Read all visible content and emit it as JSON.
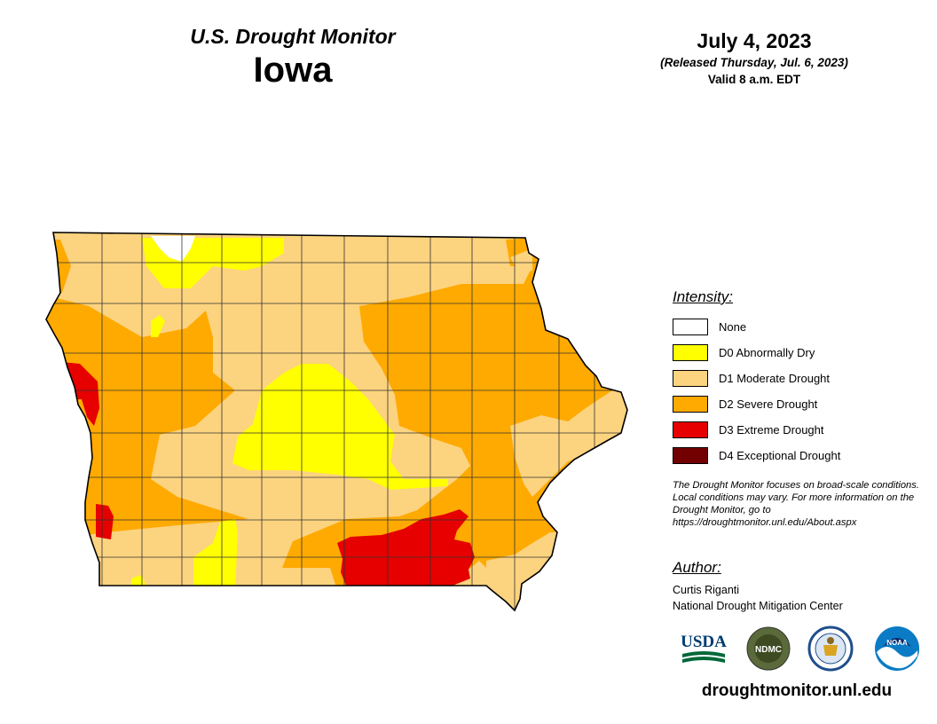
{
  "header": {
    "subtitle": "U.S. Drought Monitor",
    "state": "Iowa",
    "date": "July 4, 2023",
    "released": "(Released Thursday, Jul. 6, 2023)",
    "valid": "Valid 8 a.m. EDT"
  },
  "legend": {
    "title": "Intensity:",
    "items": [
      {
        "label": "None",
        "color": "#ffffff"
      },
      {
        "label": "D0 Abnormally Dry",
        "color": "#ffff00"
      },
      {
        "label": "D1 Moderate Drought",
        "color": "#fcd37f"
      },
      {
        "label": "D2 Severe Drought",
        "color": "#ffaa00"
      },
      {
        "label": "D3 Extreme Drought",
        "color": "#e60000"
      },
      {
        "label": "D4 Exceptional Drought",
        "color": "#730000"
      }
    ]
  },
  "note": "The Drought Monitor focuses on broad-scale conditions. Local conditions may vary. For more information on the Drought Monitor, go to https://droughtmonitor.unl.edu/About.aspx",
  "author": {
    "title": "Author:",
    "name": "Curtis Riganti",
    "org": "National Drought Mitigation Center"
  },
  "logos": [
    {
      "name": "usda-logo",
      "text": "USDA"
    },
    {
      "name": "ndmc-logo",
      "text": "NDMC"
    },
    {
      "name": "commerce-logo",
      "text": ""
    },
    {
      "name": "noaa-logo",
      "text": "NOAA"
    }
  ],
  "website": "droughtmonitor.unl.edu"
}
